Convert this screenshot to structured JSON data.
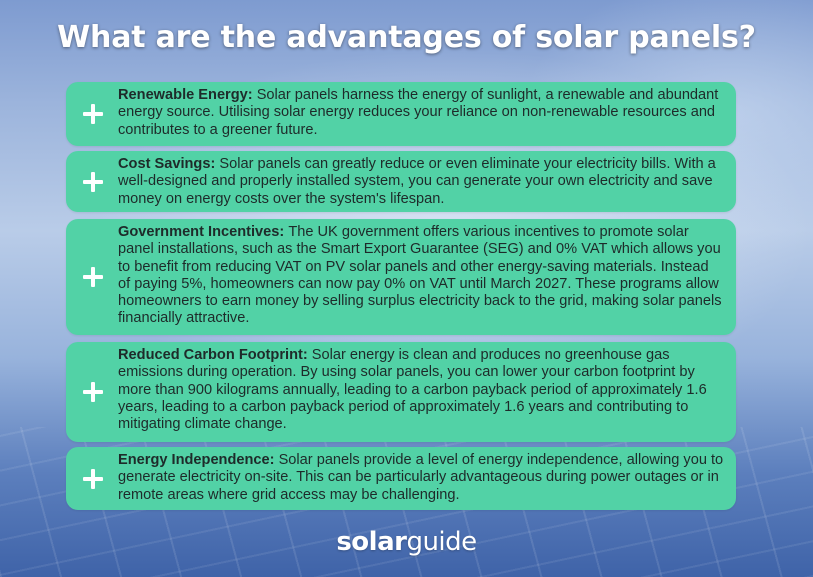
{
  "title": "What are the advantages of solar panels?",
  "cards": [
    {
      "heading": "Renewable Energy:",
      "text": "Solar panels harness the energy of sunlight, a renewable and abundant energy source. Utilising solar energy reduces your reliance on non-renewable resources and contributes to a greener future.",
      "icon": "plus-icon"
    },
    {
      "heading": "Cost Savings:",
      "text": "Solar panels can greatly reduce or even eliminate your electricity bills. With a well-designed and properly installed system, you can generate your own electricity and save money on energy costs over the system's lifespan.",
      "icon": "plus-icon"
    },
    {
      "heading": "Government Incentives:",
      "text": "The UK government offers various incentives to promote solar panel installations, such as the Smart Export Guarantee (SEG) and 0% VAT which allows you to benefit from reducing VAT on PV solar panels and other energy-saving materials. Instead of paying 5%, homeowners can now pay 0% on VAT until March 2027. These programs allow homeowners to earn money by selling surplus electricity back to the grid, making solar panels financially attractive.",
      "icon": "plus-icon"
    },
    {
      "heading": "Reduced Carbon Footprint:",
      "text": "Solar energy is clean and produces no greenhouse gas emissions during operation. By using solar panels, you can lower your carbon footprint  by more than 900 kilograms annually, leading to a carbon payback period of approximately 1.6 years,  leading to a carbon payback period of approximately 1.6 years and contributing to mitigating climate change.",
      "icon": "plus-icon"
    },
    {
      "heading": "Energy Independence:",
      "text": "Solar panels provide a level of energy independence, allowing you to generate electricity on-site. This can be particularly advantageous during power outages or in remote areas where grid access may be challenging.",
      "icon": "plus-icon"
    }
  ],
  "logo": {
    "part1": "solar",
    "part2": "guide"
  },
  "colors": {
    "card_background": "#52d2a6",
    "card_text": "#1e2b2a",
    "title": "#ffffff",
    "icon": "#ffffff"
  }
}
